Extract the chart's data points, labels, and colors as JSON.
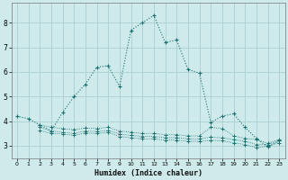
{
  "xlabel": "Humidex (Indice chaleur)",
  "background_color": "#ceeaea",
  "grid_color": "#aacfcf",
  "line_color": "#1a7070",
  "line1_x": [
    0,
    1,
    2,
    3,
    4,
    5,
    6,
    7,
    8,
    9,
    10,
    11,
    12,
    13,
    14,
    15,
    16,
    17,
    18,
    19,
    20,
    21,
    22,
    23
  ],
  "line1_y": [
    4.2,
    4.1,
    3.85,
    3.6,
    4.35,
    5.0,
    5.5,
    6.2,
    6.25,
    5.4,
    7.7,
    8.0,
    8.3,
    7.2,
    7.3,
    6.1,
    5.95,
    3.95,
    4.2,
    4.3,
    3.75,
    3.3,
    2.95,
    3.2
  ],
  "line2_x": [
    2,
    3,
    4,
    5,
    6,
    7,
    8,
    9,
    10,
    11,
    12,
    13,
    14,
    15,
    16,
    17,
    18,
    19,
    20,
    21,
    22,
    23
  ],
  "line2_y": [
    3.85,
    3.75,
    3.7,
    3.65,
    3.72,
    3.7,
    3.75,
    3.6,
    3.55,
    3.5,
    3.5,
    3.45,
    3.45,
    3.4,
    3.4,
    3.75,
    3.7,
    3.4,
    3.3,
    3.25,
    3.1,
    3.25
  ],
  "line3_x": [
    2,
    3,
    4,
    5,
    6,
    7,
    8,
    9,
    10,
    11,
    12,
    13,
    14,
    15,
    16,
    17,
    18,
    19,
    20,
    21,
    22,
    23
  ],
  "line3_y": [
    3.75,
    3.6,
    3.55,
    3.5,
    3.6,
    3.58,
    3.62,
    3.48,
    3.42,
    3.38,
    3.38,
    3.33,
    3.33,
    3.28,
    3.28,
    3.35,
    3.32,
    3.25,
    3.18,
    3.05,
    3.05,
    3.2
  ],
  "line4_x": [
    2,
    3,
    4,
    5,
    6,
    7,
    8,
    9,
    10,
    11,
    12,
    13,
    14,
    15,
    16,
    17,
    18,
    19,
    20,
    21,
    22,
    23
  ],
  "line4_y": [
    3.62,
    3.5,
    3.48,
    3.42,
    3.52,
    3.5,
    3.54,
    3.38,
    3.32,
    3.28,
    3.28,
    3.23,
    3.23,
    3.18,
    3.18,
    3.22,
    3.2,
    3.12,
    3.05,
    2.92,
    2.98,
    3.12
  ],
  "xlim": [
    -0.5,
    23.5
  ],
  "ylim": [
    2.5,
    8.8
  ],
  "yticks": [
    3,
    4,
    5,
    6,
    7,
    8
  ],
  "xticks": [
    0,
    1,
    2,
    3,
    4,
    5,
    6,
    7,
    8,
    9,
    10,
    11,
    12,
    13,
    14,
    15,
    16,
    17,
    18,
    19,
    20,
    21,
    22,
    23
  ]
}
